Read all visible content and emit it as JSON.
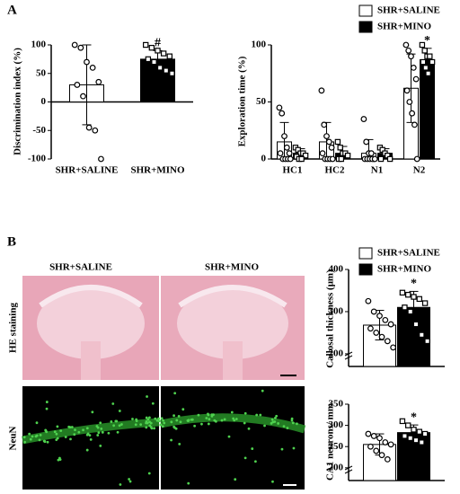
{
  "panel_labels": [
    "A",
    "B"
  ],
  "images": {
    "columns": [
      "SHR+SALINE",
      "SHR+MINO"
    ],
    "rows": [
      "HE staining",
      "NeuN"
    ]
  },
  "chart_data": [
    {
      "type": "bar",
      "y_label": "Discrimination index (%)",
      "categories": [
        "SHR+SALINE",
        "SHR+MINO"
      ],
      "values": [
        30,
        75
      ],
      "errors": [
        70,
        15
      ],
      "colors": [
        "#ffffff",
        "#000000"
      ],
      "points": [
        [
          100,
          95,
          70,
          60,
          35,
          30,
          10,
          -45,
          -50,
          -100
        ],
        [
          100,
          95,
          90,
          85,
          80,
          75,
          70,
          60,
          55,
          50
        ]
      ],
      "ylim": [
        -100,
        100
      ],
      "yticks": [
        -100,
        -50,
        0,
        50,
        100
      ],
      "annotation": "#"
    },
    {
      "type": "bar",
      "y_label": "Exploration time (%)",
      "categories": [
        "HC1",
        "HC2",
        "N1",
        "N2"
      ],
      "ylim": [
        0,
        100
      ],
      "yticks": [
        0,
        50,
        100
      ],
      "annotation": "*",
      "series": [
        {
          "name": "SHR+SALINE",
          "color": "#ffffff",
          "values": [
            15,
            15,
            5,
            62
          ],
          "errors": [
            17,
            17,
            12,
            30
          ],
          "points": [
            [
              45,
              40,
              20,
              10,
              5,
              5,
              0,
              0,
              0,
              0
            ],
            [
              60,
              30,
              20,
              15,
              10,
              5,
              0,
              0,
              0,
              0
            ],
            [
              35,
              15,
              5,
              5,
              0,
              0,
              0,
              0,
              0,
              0
            ],
            [
              100,
              95,
              90,
              80,
              70,
              60,
              50,
              40,
              30,
              0
            ]
          ]
        },
        {
          "name": "SHR+MINO",
          "color": "#000000",
          "values": [
            5,
            5,
            5,
            87
          ],
          "errors": [
            4,
            6,
            4,
            10
          ],
          "points": [
            [
              10,
              8,
              5,
              5,
              3,
              2,
              0,
              0
            ],
            [
              15,
              10,
              5,
              5,
              3,
              0,
              0
            ],
            [
              10,
              8,
              5,
              3,
              0,
              0
            ],
            [
              100,
              95,
              90,
              90,
              85,
              85,
              80,
              75
            ]
          ]
        }
      ]
    },
    {
      "type": "bar",
      "y_label": "Callosal thickness (μm)",
      "ylim": [
        170,
        400
      ],
      "yticks": [
        200,
        300,
        400
      ],
      "annotation": "*",
      "series": [
        {
          "name": "SHR+SALINE",
          "color": "#ffffff",
          "values": [
            268
          ],
          "errors": [
            35
          ],
          "points": [
            [
              325,
              300,
              290,
              280,
              270,
              260,
              250,
              240,
              230,
              215
            ]
          ]
        },
        {
          "name": "SHR+MINO",
          "color": "#000000",
          "values": [
            310
          ],
          "errors": [
            38
          ],
          "points": [
            [
              345,
              340,
              335,
              330,
              320,
              310,
              300,
              270,
              245,
              230
            ]
          ]
        }
      ]
    },
    {
      "type": "bar",
      "y_label": "CA1 neurons/ mm",
      "ylim": [
        170,
        350
      ],
      "yticks": [
        200,
        250,
        300,
        350
      ],
      "annotation": "*",
      "series": [
        {
          "color": "#ffffff",
          "values": [
            255
          ],
          "errors": [
            25
          ],
          "points": [
            [
              280,
              275,
              270,
              260,
              255,
              250,
              240,
              230,
              220
            ]
          ]
        },
        {
          "color": "#000000",
          "values": [
            283
          ],
          "errors": [
            18
          ],
          "points": [
            [
              310,
              300,
              290,
              285,
              280,
              275,
              270,
              265,
              260
            ]
          ]
        }
      ]
    }
  ]
}
